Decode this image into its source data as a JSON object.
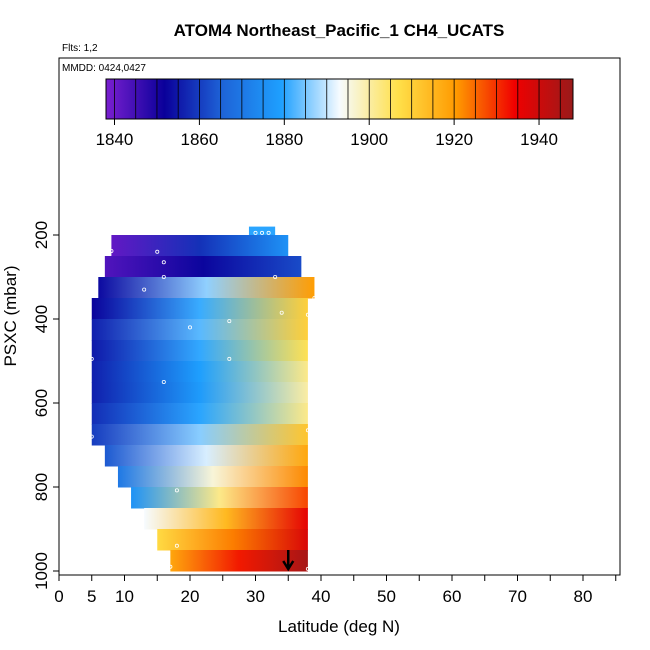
{
  "chart_data": {
    "type": "heatmap",
    "title": "ATOM4 Northeast_Pacific_1 CH4_UCATS",
    "subtitle_flights": "Flts: 1,2",
    "subtitle_dates": "MMDD: 0424,0427",
    "xlabel": "Latitude (deg N)",
    "ylabel": "PSXC (mbar)",
    "xlim": [
      0,
      85
    ],
    "ylim": [
      1000,
      150
    ],
    "x_ticks": [
      0,
      5,
      10,
      20,
      30,
      40,
      50,
      60,
      70,
      80
    ],
    "x_tick_labels": [
      "0",
      "5",
      "10",
      "20",
      "30",
      "40",
      "50",
      "60",
      "70",
      "80"
    ],
    "y_ticks": [
      200,
      400,
      600,
      800,
      1000
    ],
    "y_tick_labels": [
      "200",
      "400",
      "600",
      "800",
      "1000"
    ],
    "colorbar": {
      "range": [
        1838,
        1948
      ],
      "ticks": [
        1840,
        1860,
        1880,
        1900,
        1920,
        1940
      ],
      "tick_labels": [
        "1840",
        "1860",
        "1880",
        "1900",
        "1920",
        "1940"
      ],
      "colors": [
        "#7a1fd0",
        "#0a009a",
        "#1e64d8",
        "#1ea0ff",
        "#f6fbff",
        "#ffe04a",
        "#ff9a00",
        "#f00000",
        "#9a1a1a"
      ]
    },
    "grid": false,
    "rows": [
      {
        "p_top": 180,
        "p_bot": 200,
        "lat_start": 29,
        "lat_end": 33,
        "c_start": 1880,
        "c_end": 1880
      },
      {
        "p_top": 200,
        "p_bot": 250,
        "lat_start": 8,
        "lat_end": 35,
        "c_start": 1841,
        "c_end": 1876
      },
      {
        "p_top": 250,
        "p_bot": 300,
        "lat_start": 7,
        "lat_end": 37,
        "c_start": 1843,
        "c_end": 1862
      },
      {
        "p_top": 300,
        "p_bot": 350,
        "lat_start": 6,
        "lat_end": 39,
        "c_start": 1853,
        "c_end": 1920
      },
      {
        "p_top": 350,
        "p_bot": 400,
        "lat_start": 5,
        "lat_end": 38,
        "c_start": 1852,
        "c_end": 1910
      },
      {
        "p_top": 400,
        "p_bot": 450,
        "lat_start": 5,
        "lat_end": 38,
        "c_start": 1856,
        "c_end": 1910
      },
      {
        "p_top": 450,
        "p_bot": 500,
        "lat_start": 5,
        "lat_end": 38,
        "c_start": 1855,
        "c_end": 1906
      },
      {
        "p_top": 500,
        "p_bot": 550,
        "lat_start": 5,
        "lat_end": 38,
        "c_start": 1856,
        "c_end": 1902
      },
      {
        "p_top": 550,
        "p_bot": 600,
        "lat_start": 5,
        "lat_end": 38,
        "c_start": 1856,
        "c_end": 1900
      },
      {
        "p_top": 600,
        "p_bot": 650,
        "lat_start": 5,
        "lat_end": 38,
        "c_start": 1858,
        "c_end": 1902
      },
      {
        "p_top": 650,
        "p_bot": 700,
        "lat_start": 5,
        "lat_end": 38,
        "c_start": 1860,
        "c_end": 1912
      },
      {
        "p_top": 700,
        "p_bot": 750,
        "lat_start": 7,
        "lat_end": 38,
        "c_start": 1864,
        "c_end": 1918
      },
      {
        "p_top": 750,
        "p_bot": 800,
        "lat_start": 9,
        "lat_end": 38,
        "c_start": 1870,
        "c_end": 1922
      },
      {
        "p_top": 800,
        "p_bot": 850,
        "lat_start": 11,
        "lat_end": 38,
        "c_start": 1876,
        "c_end": 1928
      },
      {
        "p_top": 850,
        "p_bot": 900,
        "lat_start": 13,
        "lat_end": 38,
        "c_start": 1893,
        "c_end": 1936
      },
      {
        "p_top": 900,
        "p_bot": 950,
        "lat_start": 15,
        "lat_end": 38,
        "c_start": 1908,
        "c_end": 1938
      },
      {
        "p_top": 950,
        "p_bot": 1000,
        "lat_start": 17,
        "lat_end": 38,
        "c_start": 1918,
        "c_end": 1946
      }
    ],
    "points": [
      {
        "lat": 30,
        "p": 195
      },
      {
        "lat": 31,
        "p": 195
      },
      {
        "lat": 32,
        "p": 195
      },
      {
        "lat": 8,
        "p": 238
      },
      {
        "lat": 15,
        "p": 240
      },
      {
        "lat": 16,
        "p": 265
      },
      {
        "lat": 16,
        "p": 300
      },
      {
        "lat": 33,
        "p": 300
      },
      {
        "lat": 13,
        "p": 330
      },
      {
        "lat": 39,
        "p": 350
      },
      {
        "lat": 34,
        "p": 385
      },
      {
        "lat": 20,
        "p": 420
      },
      {
        "lat": 26,
        "p": 405
      },
      {
        "lat": 38,
        "p": 390
      },
      {
        "lat": 5,
        "p": 495
      },
      {
        "lat": 26,
        "p": 495
      },
      {
        "lat": 16,
        "p": 550
      },
      {
        "lat": 5,
        "p": 680
      },
      {
        "lat": 38,
        "p": 665
      },
      {
        "lat": 18,
        "p": 808
      },
      {
        "lat": 18,
        "p": 940
      },
      {
        "lat": 17,
        "p": 990
      },
      {
        "lat": 38,
        "p": 995
      }
    ],
    "marker_arrow": {
      "lat": 35,
      "p_from": 950,
      "p_to": 1000
    }
  }
}
